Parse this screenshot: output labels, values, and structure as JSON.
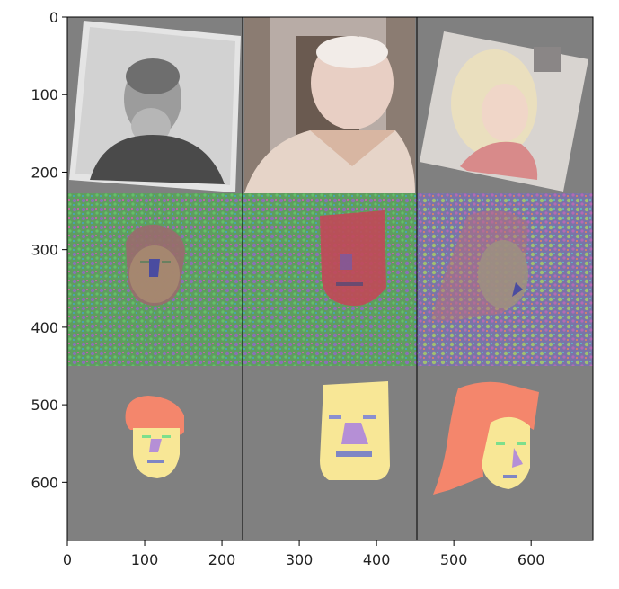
{
  "figure": {
    "description_free": true,
    "background": "#ffffff",
    "panel_bg": "#808080",
    "separator_color": "#000000",
    "x_axis": {
      "ticks": [
        0,
        100,
        200,
        300,
        400,
        500,
        600
      ],
      "range": [
        0,
        680
      ]
    },
    "y_axis": {
      "ticks": [
        0,
        100,
        200,
        300,
        400,
        500,
        600
      ],
      "range": [
        0,
        675
      ]
    }
  },
  "colors": {
    "skin": "#f8e796",
    "hair": "#f4866c",
    "nose": "#b58fd6",
    "brows": "#8a8fd0",
    "eyes": "#7ddf8c",
    "mouth": "#7f86c4",
    "noise_green": "#58a45c",
    "noise_purple": "#8a74b4",
    "face_red": "#c04a58"
  }
}
